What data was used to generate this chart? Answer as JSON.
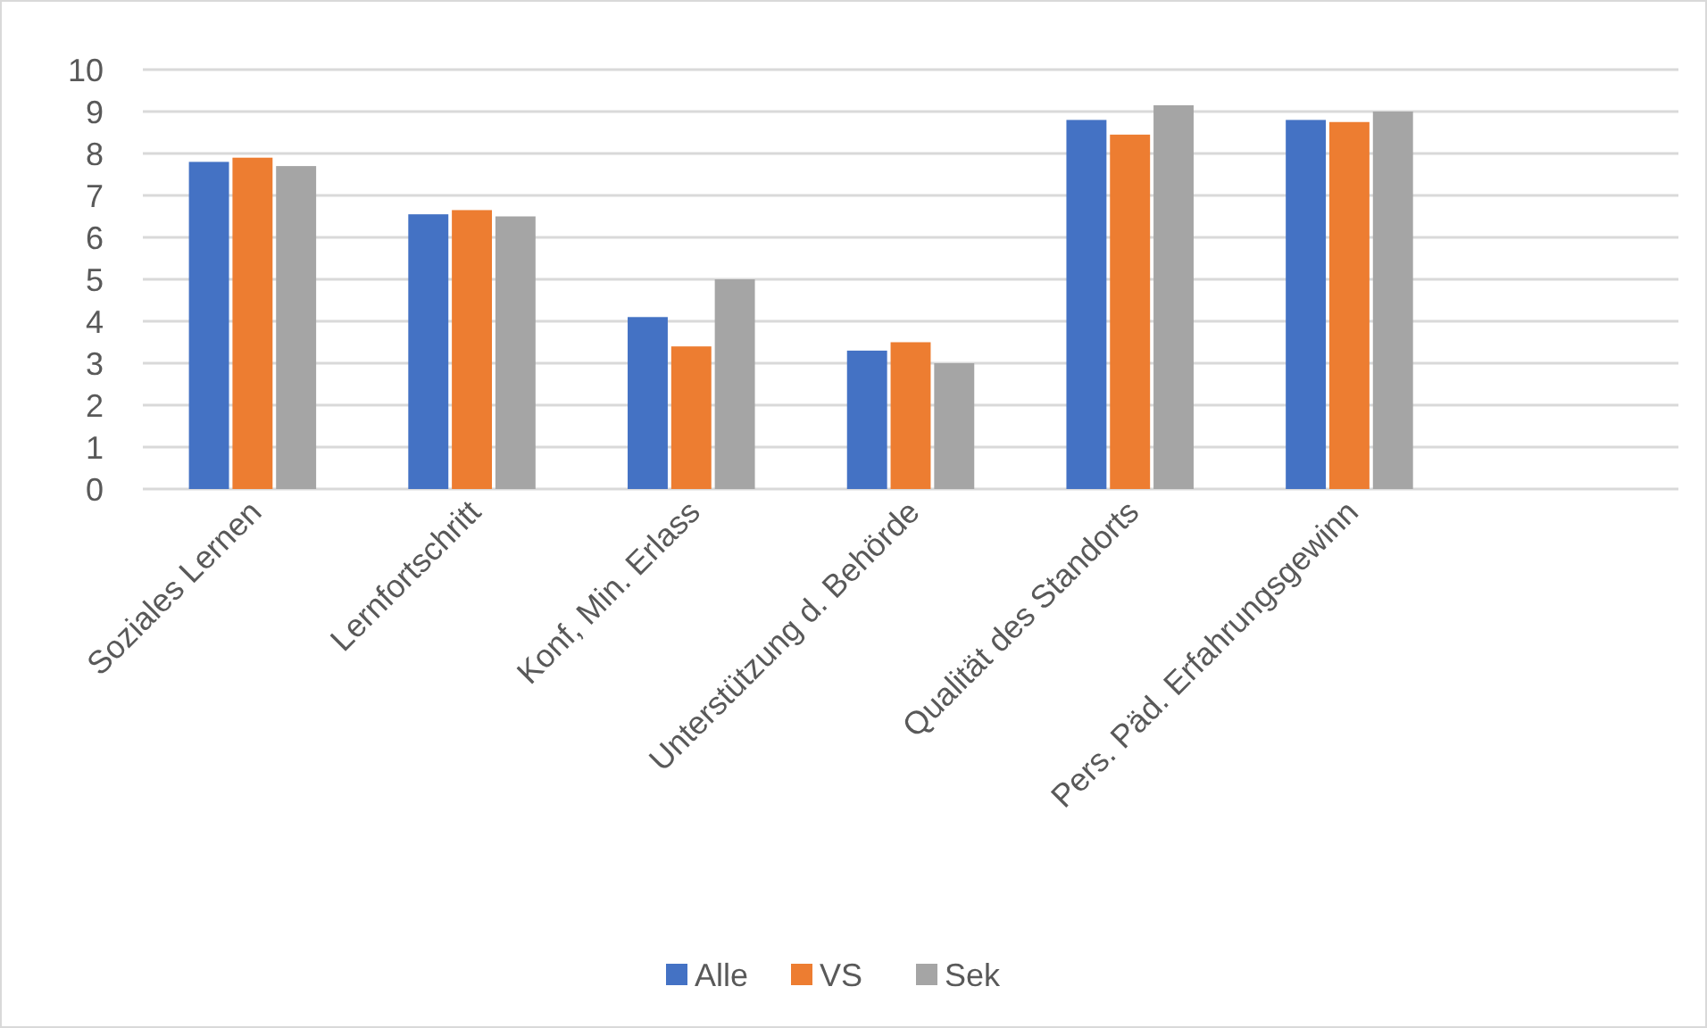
{
  "chart_data": {
    "type": "bar",
    "categories": [
      "Soziales Lernen",
      "Lernfortschritt",
      "Konf, Min. Erlass",
      "Unterstützung d. Behörde",
      "Qualität des Standorts",
      "Pers. Päd. Erfahrungsgewinn",
      null
    ],
    "series": [
      {
        "name": "Alle",
        "color": "#4472c4",
        "values": [
          7.8,
          6.55,
          4.1,
          3.3,
          8.8,
          8.8,
          null
        ]
      },
      {
        "name": "VS",
        "color": "#ed7d31",
        "values": [
          7.9,
          6.65,
          3.4,
          3.5,
          8.45,
          8.75,
          null
        ]
      },
      {
        "name": "Sek",
        "color": "#a5a5a5",
        "values": [
          7.7,
          6.5,
          5.0,
          3.0,
          9.15,
          9.0,
          null
        ]
      }
    ],
    "ylim": [
      0,
      10
    ],
    "yticks": [
      0,
      1,
      2,
      3,
      4,
      5,
      6,
      7,
      8,
      9,
      10
    ],
    "grid": "y",
    "legend": "bottom"
  }
}
